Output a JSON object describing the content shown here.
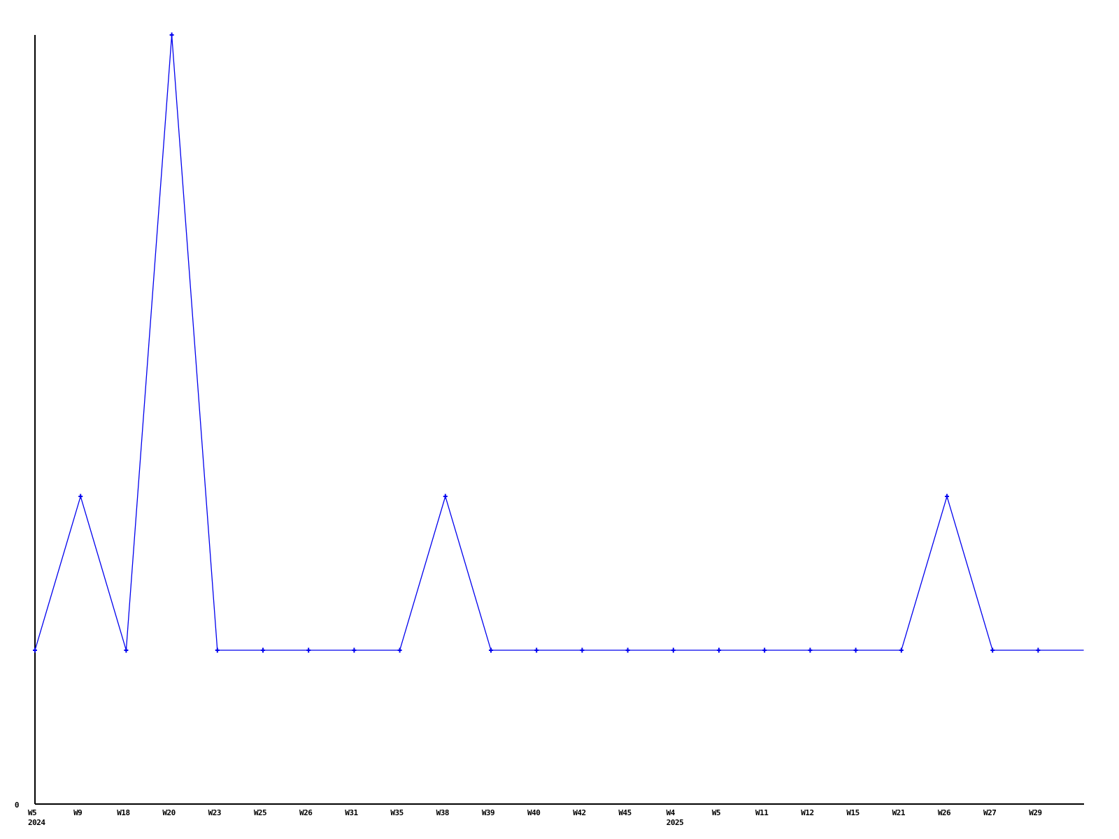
{
  "chart_data": {
    "type": "line",
    "title": "",
    "categories": [
      "W5",
      "W9",
      "W18",
      "W20",
      "W23",
      "W25",
      "W26",
      "W31",
      "W35",
      "W38",
      "W39",
      "W40",
      "W42",
      "W45",
      "W4",
      "W5",
      "W11",
      "W12",
      "W15",
      "W21",
      "W26",
      "W27",
      "W29"
    ],
    "values": [
      1,
      2,
      1,
      5,
      1,
      1,
      1,
      1,
      1,
      2,
      1,
      1,
      1,
      1,
      1,
      1,
      1,
      1,
      1,
      1,
      2,
      1,
      1,
      1
    ],
    "year_markers": [
      {
        "index": 0,
        "label": "2024"
      },
      {
        "index": 14,
        "label": "2025"
      }
    ],
    "y_tick_labels": [
      "0"
    ],
    "ylim": [
      0,
      5
    ],
    "xlabel": "",
    "ylabel": "",
    "grid": false,
    "legend": null,
    "line_color": "#0000ee",
    "marker_color": "#0000ee",
    "axis_color": "#000000",
    "marker_style": "plus",
    "notes": "last point of line extends past final labeled week with no marker"
  }
}
